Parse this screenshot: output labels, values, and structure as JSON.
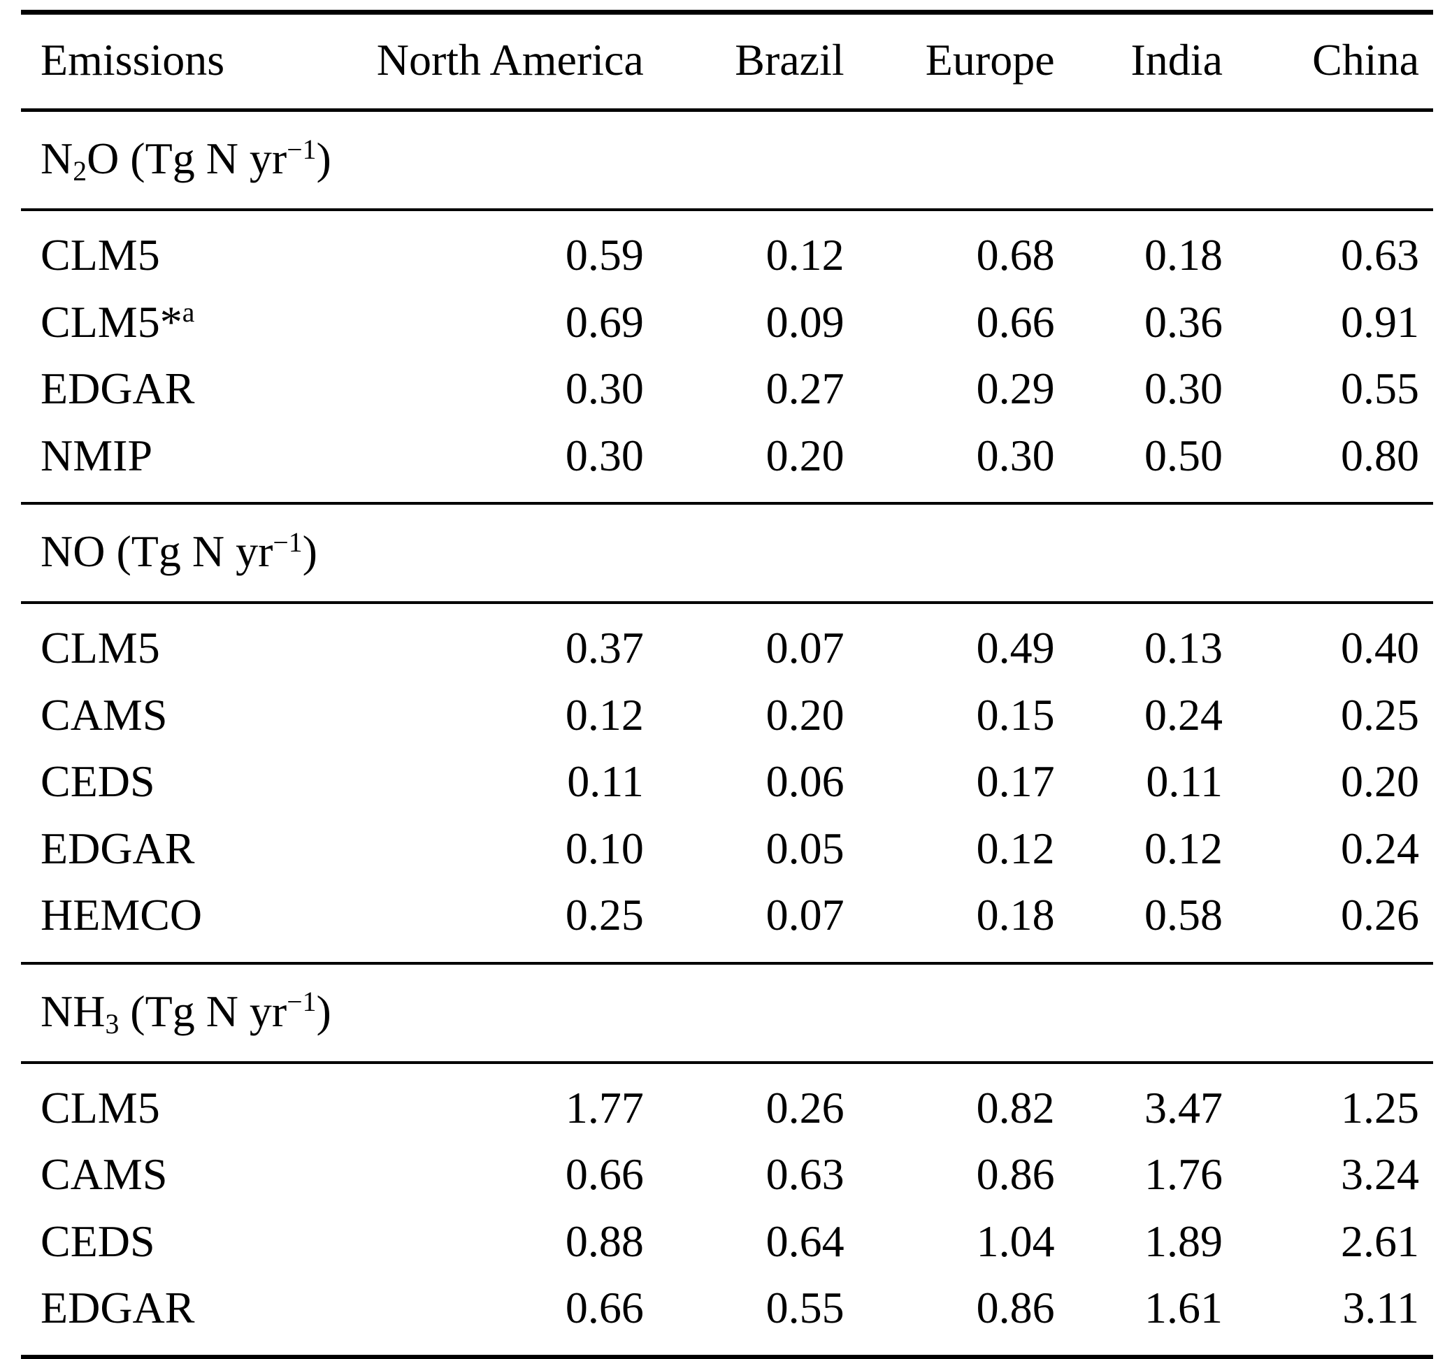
{
  "page": {
    "background_color": "#ffffff",
    "text_color": "#000000"
  },
  "table": {
    "columns": [
      "Emissions",
      "North America",
      "Brazil",
      "Europe",
      "India",
      "China"
    ],
    "sections": [
      {
        "title_text": "N2O (Tg N yr-1)",
        "title_segments": [
          {
            "text": "N"
          },
          {
            "text": "2",
            "style": "sub"
          },
          {
            "text": "O (Tg N yr"
          },
          {
            "text": "−1",
            "style": "sup"
          },
          {
            "text": ")"
          }
        ],
        "rows": [
          {
            "label_text": "CLM5",
            "label_segments": [
              {
                "text": "CLM5"
              }
            ],
            "values": [
              "0.59",
              "0.12",
              "0.68",
              "0.18",
              "0.63"
            ]
          },
          {
            "label_text": "CLM5*a",
            "label_segments": [
              {
                "text": "CLM5*"
              },
              {
                "text": "a",
                "style": "sup"
              }
            ],
            "values": [
              "0.69",
              "0.09",
              "0.66",
              "0.36",
              "0.91"
            ]
          },
          {
            "label_text": "EDGAR",
            "label_segments": [
              {
                "text": "EDGAR"
              }
            ],
            "values": [
              "0.30",
              "0.27",
              "0.29",
              "0.30",
              "0.55"
            ]
          },
          {
            "label_text": "NMIP",
            "label_segments": [
              {
                "text": "NMIP"
              }
            ],
            "values": [
              "0.30",
              "0.20",
              "0.30",
              "0.50",
              "0.80"
            ]
          }
        ]
      },
      {
        "title_text": "NO (Tg N yr-1)",
        "title_segments": [
          {
            "text": "NO (Tg N yr"
          },
          {
            "text": "−1",
            "style": "sup"
          },
          {
            "text": ")"
          }
        ],
        "rows": [
          {
            "label_text": "CLM5",
            "label_segments": [
              {
                "text": "CLM5"
              }
            ],
            "values": [
              "0.37",
              "0.07",
              "0.49",
              "0.13",
              "0.40"
            ]
          },
          {
            "label_text": "CAMS",
            "label_segments": [
              {
                "text": "CAMS"
              }
            ],
            "values": [
              "0.12",
              "0.20",
              "0.15",
              "0.24",
              "0.25"
            ]
          },
          {
            "label_text": "CEDS",
            "label_segments": [
              {
                "text": "CEDS"
              }
            ],
            "values": [
              "0.11",
              "0.06",
              "0.17",
              "0.11",
              "0.20"
            ]
          },
          {
            "label_text": "EDGAR",
            "label_segments": [
              {
                "text": "EDGAR"
              }
            ],
            "values": [
              "0.10",
              "0.05",
              "0.12",
              "0.12",
              "0.24"
            ]
          },
          {
            "label_text": "HEMCO",
            "label_segments": [
              {
                "text": "HEMCO"
              }
            ],
            "values": [
              "0.25",
              "0.07",
              "0.18",
              "0.58",
              "0.26"
            ]
          }
        ]
      },
      {
        "title_text": "NH3 (Tg N yr-1)",
        "title_segments": [
          {
            "text": "NH"
          },
          {
            "text": "3",
            "style": "sub"
          },
          {
            "text": " (Tg N yr"
          },
          {
            "text": "−1",
            "style": "sup"
          },
          {
            "text": ")"
          }
        ],
        "rows": [
          {
            "label_text": "CLM5",
            "label_segments": [
              {
                "text": "CLM5"
              }
            ],
            "values": [
              "1.77",
              "0.26",
              "0.82",
              "3.47",
              "1.25"
            ]
          },
          {
            "label_text": "CAMS",
            "label_segments": [
              {
                "text": "CAMS"
              }
            ],
            "values": [
              "0.66",
              "0.63",
              "0.86",
              "1.76",
              "3.24"
            ]
          },
          {
            "label_text": "CEDS",
            "label_segments": [
              {
                "text": "CEDS"
              }
            ],
            "values": [
              "0.88",
              "0.64",
              "1.04",
              "1.89",
              "2.61"
            ]
          },
          {
            "label_text": "EDGAR",
            "label_segments": [
              {
                "text": "EDGAR"
              }
            ],
            "values": [
              "0.66",
              "0.55",
              "0.86",
              "1.61",
              "3.11"
            ]
          }
        ]
      }
    ]
  }
}
